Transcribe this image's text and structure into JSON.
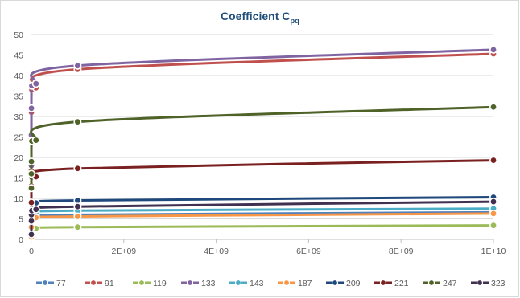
{
  "chart_data": {
    "type": "line",
    "title": "Coefficient C",
    "title_subscript": "pq",
    "xlabel": "",
    "ylabel": "",
    "xlim": [
      0,
      10000000000
    ],
    "ylim": [
      0,
      50
    ],
    "x_ticks": [
      0,
      2000000000,
      4000000000,
      6000000000,
      8000000000,
      10000000000
    ],
    "x_tick_labels": [
      "0",
      "2E+09",
      "4E+09",
      "6E+09",
      "8E+09",
      "1E+10"
    ],
    "y_ticks": [
      0,
      5,
      10,
      15,
      20,
      25,
      30,
      35,
      40,
      45,
      50
    ],
    "y_tick_labels": [
      "0",
      "5",
      "10",
      "15",
      "20",
      "25",
      "30",
      "35",
      "40",
      "45",
      "50"
    ],
    "grid": "horizontal",
    "legend_position": "bottom",
    "x": [
      0,
      100000,
      1000000,
      10000000,
      100000000,
      1000000000,
      10000000000
    ],
    "series": [
      {
        "name": "77",
        "color": "#4f81bd",
        "values": [
          0.5,
          2.8,
          4.0,
          5.0,
          5.7,
          6.0,
          6.6
        ]
      },
      {
        "name": "91",
        "color": "#c0504d",
        "values": [
          17.0,
          24.5,
          31.0,
          36.5,
          37.0,
          41.5,
          45.3
        ]
      },
      {
        "name": "119",
        "color": "#9bbb59",
        "values": [
          0.3,
          1.2,
          2.0,
          2.5,
          2.7,
          3.0,
          3.4
        ]
      },
      {
        "name": "133",
        "color": "#8064a2",
        "values": [
          18.0,
          25.5,
          32.0,
          37.5,
          38.0,
          42.4,
          46.3
        ]
      },
      {
        "name": "143",
        "color": "#4bacc6",
        "values": [
          0.8,
          3.5,
          5.0,
          6.0,
          6.5,
          7.0,
          7.5
        ]
      },
      {
        "name": "187",
        "color": "#f79646",
        "values": [
          0.6,
          3.0,
          4.3,
          5.0,
          5.3,
          5.6,
          6.3
        ]
      },
      {
        "name": "209",
        "color": "#1f497d",
        "values": [
          1.5,
          5.0,
          7.0,
          8.5,
          8.9,
          9.5,
          10.3
        ]
      },
      {
        "name": "221",
        "color": "#7b2020",
        "values": [
          9.0,
          13.0,
          15.0,
          15.2,
          15.3,
          17.3,
          19.3
        ]
      },
      {
        "name": "247",
        "color": "#4f6228",
        "values": [
          12.5,
          16.0,
          19.0,
          24.0,
          24.2,
          28.7,
          32.3
        ]
      },
      {
        "name": "323",
        "color": "#403151",
        "values": [
          1.2,
          4.5,
          6.0,
          7.0,
          7.3,
          8.0,
          9.2
        ]
      }
    ]
  }
}
